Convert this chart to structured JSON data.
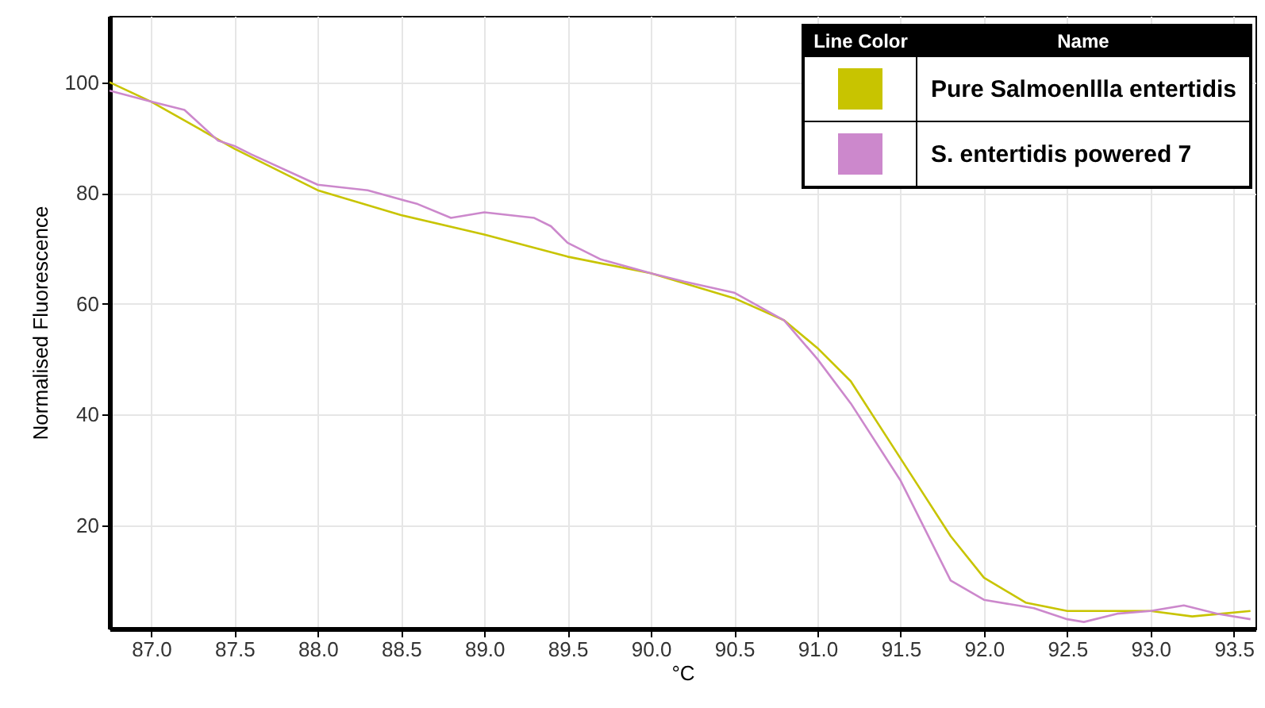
{
  "chart_data": {
    "type": "line",
    "xlabel": "°C",
    "ylabel": "Normalised Fluorescence",
    "legend_title": "Line Color",
    "annotations": [
      "Name"
    ],
    "xlim": [
      86.75,
      93.63
    ],
    "ylim": [
      1.3,
      112
    ],
    "xticks": [
      {
        "value": 87,
        "label": "87.0"
      },
      {
        "value": 87.5,
        "label": "87.5"
      },
      {
        "value": 88,
        "label": "88.0"
      },
      {
        "value": 88.5,
        "label": "88.5"
      },
      {
        "value": 89,
        "label": "89.0"
      },
      {
        "value": 89.5,
        "label": "89.5"
      },
      {
        "value": 90,
        "label": "90.0"
      },
      {
        "value": 90.5,
        "label": "90.5"
      },
      {
        "value": 91,
        "label": "91.0"
      },
      {
        "value": 91.5,
        "label": "91.5"
      },
      {
        "value": 92,
        "label": "92.0"
      },
      {
        "value": 92.5,
        "label": "92.5"
      },
      {
        "value": 93,
        "label": "93.0"
      },
      {
        "value": 93.5,
        "label": "93.5"
      }
    ],
    "yticks": [
      20,
      40,
      60,
      80,
      100
    ],
    "grid": true,
    "legend": "top right",
    "line_style": "solid",
    "marker": "none",
    "series": [
      {
        "name": "Pure Salmoenllla entertidis",
        "color": "#c8c400",
        "x": [
          86.75,
          87.0,
          87.5,
          88.0,
          88.5,
          89.0,
          89.5,
          90.0,
          90.5,
          90.8,
          91.0,
          91.2,
          91.5,
          91.8,
          92.0,
          92.25,
          92.5,
          93.0,
          93.25,
          93.6
        ],
        "values": [
          100,
          96.5,
          88,
          80.5,
          76,
          72.5,
          68.5,
          65.5,
          61,
          57,
          52,
          46,
          32,
          18,
          10.5,
          6,
          4.5,
          4.5,
          3.5,
          4.5
        ]
      },
      {
        "name": "S. entertidis powered 7",
        "color": "#cc88cc",
        "x": [
          86.75,
          87.0,
          87.2,
          87.4,
          87.5,
          87.6,
          88.0,
          88.3,
          88.6,
          88.8,
          89.0,
          89.3,
          89.4,
          89.5,
          89.7,
          90.0,
          90.2,
          90.5,
          90.8,
          91.0,
          91.2,
          91.5,
          91.8,
          92.0,
          92.3,
          92.5,
          92.6,
          92.8,
          93.0,
          93.2,
          93.4,
          93.6
        ],
        "values": [
          98.5,
          96.5,
          95,
          89.5,
          88.5,
          87,
          81.5,
          80.5,
          78,
          75.5,
          76.5,
          75.5,
          74,
          71,
          68,
          65.5,
          64,
          62,
          57,
          50,
          42,
          28,
          10,
          6.5,
          5,
          3,
          2.5,
          4,
          4.5,
          5.5,
          4,
          3
        ]
      }
    ]
  }
}
